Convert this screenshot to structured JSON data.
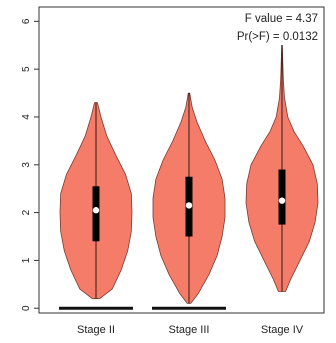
{
  "chart_data": {
    "type": "violin",
    "title": "",
    "xlabel": "",
    "ylabel": "",
    "ylim": [
      -0.1,
      6.3
    ],
    "yticks": [
      0,
      1,
      2,
      3,
      4,
      5,
      6
    ],
    "categories": [
      "Stage II",
      "Stage III",
      "Stage IV"
    ],
    "annotations": [
      "F value = 4.37",
      "Pr(>F) = 0.0132"
    ],
    "fill_color": "#F47C69",
    "stroke_color": "#7a3a30",
    "zero_line_color": "#111111",
    "box_color": "#000000",
    "median_color": "#ffffff",
    "series": [
      {
        "category": "Stage II",
        "min": 0.2,
        "q1": 1.4,
        "median": 2.05,
        "q3": 2.55,
        "max": 4.3,
        "has_zero_cluster": true,
        "profile": [
          [
            0.2,
            0.1
          ],
          [
            0.4,
            0.45
          ],
          [
            0.8,
            0.7
          ],
          [
            1.2,
            0.88
          ],
          [
            1.6,
            0.98
          ],
          [
            2.0,
            1.0
          ],
          [
            2.4,
            0.98
          ],
          [
            2.8,
            0.82
          ],
          [
            3.2,
            0.55
          ],
          [
            3.6,
            0.3
          ],
          [
            4.0,
            0.14
          ],
          [
            4.3,
            0.04
          ]
        ]
      },
      {
        "category": "Stage III",
        "min": 0.1,
        "q1": 1.5,
        "median": 2.15,
        "q3": 2.75,
        "max": 4.5,
        "has_zero_cluster": true,
        "profile": [
          [
            0.1,
            0.05
          ],
          [
            0.3,
            0.25
          ],
          [
            0.7,
            0.55
          ],
          [
            1.1,
            0.78
          ],
          [
            1.5,
            0.92
          ],
          [
            1.9,
            1.0
          ],
          [
            2.3,
            1.0
          ],
          [
            2.7,
            0.92
          ],
          [
            3.1,
            0.72
          ],
          [
            3.5,
            0.45
          ],
          [
            3.9,
            0.22
          ],
          [
            4.2,
            0.09
          ],
          [
            4.5,
            0.02
          ]
        ]
      },
      {
        "category": "Stage IV",
        "min": 0.35,
        "q1": 1.75,
        "median": 2.25,
        "q3": 2.9,
        "max": 5.5,
        "has_zero_cluster": false,
        "profile": [
          [
            0.35,
            0.1
          ],
          [
            0.6,
            0.24
          ],
          [
            1.0,
            0.5
          ],
          [
            1.4,
            0.76
          ],
          [
            1.8,
            0.92
          ],
          [
            2.2,
            1.0
          ],
          [
            2.6,
            0.98
          ],
          [
            3.0,
            0.86
          ],
          [
            3.4,
            0.58
          ],
          [
            3.7,
            0.33
          ],
          [
            4.0,
            0.16
          ],
          [
            4.4,
            0.07
          ],
          [
            4.8,
            0.035
          ],
          [
            5.2,
            0.02
          ],
          [
            5.5,
            0.008
          ]
        ]
      }
    ]
  }
}
